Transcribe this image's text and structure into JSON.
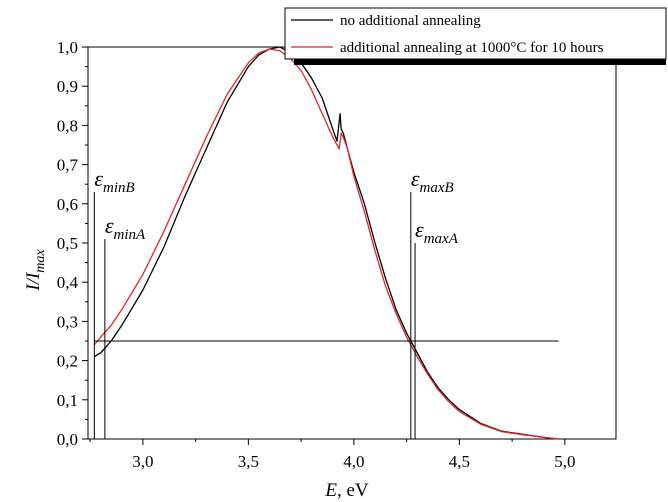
{
  "chart_data": {
    "type": "line",
    "xlabel": {
      "var": "E",
      "unit": ", eV"
    },
    "ylabel": {
      "base": "I/I",
      "sub": "max"
    },
    "xlim": [
      2.74,
      5.25
    ],
    "ylim": [
      0.0,
      1.0
    ],
    "xticks": [
      3.0,
      3.5,
      4.0,
      4.5,
      5.0
    ],
    "xtick_labels": [
      "3,0",
      "3,5",
      "4,0",
      "4,5",
      "5,0"
    ],
    "yticks": [
      0.0,
      0.1,
      0.2,
      0.3,
      0.4,
      0.5,
      0.6,
      0.7,
      0.8,
      0.9,
      1.0
    ],
    "ytick_labels": [
      "0,0",
      "0,1",
      "0,2",
      "0,3",
      "0,4",
      "0,5",
      "0,6",
      "0,7",
      "0,8",
      "0,9",
      "1,0"
    ],
    "legend_position": "top-right",
    "series": [
      {
        "name": "no additional annealing",
        "color": "#000000",
        "x": [
          2.77,
          2.8,
          2.85,
          2.9,
          3.0,
          3.1,
          3.2,
          3.3,
          3.4,
          3.5,
          3.55,
          3.6,
          3.65,
          3.7,
          3.75,
          3.8,
          3.85,
          3.9,
          3.92,
          3.935,
          3.94,
          3.95,
          3.97,
          4.0,
          4.05,
          4.1,
          4.15,
          4.2,
          4.25,
          4.3,
          4.35,
          4.4,
          4.45,
          4.5,
          4.6,
          4.7,
          4.8,
          4.9,
          4.97
        ],
        "y": [
          0.21,
          0.22,
          0.25,
          0.29,
          0.38,
          0.49,
          0.62,
          0.74,
          0.86,
          0.95,
          0.98,
          0.995,
          1.0,
          0.985,
          0.96,
          0.92,
          0.87,
          0.79,
          0.76,
          0.83,
          0.79,
          0.78,
          0.74,
          0.68,
          0.6,
          0.5,
          0.41,
          0.33,
          0.27,
          0.22,
          0.17,
          0.13,
          0.1,
          0.075,
          0.04,
          0.02,
          0.012,
          0.004,
          0.0
        ]
      },
      {
        "name": "additional annealing at 1000°C for 10 hours",
        "color": "#e32626",
        "x": [
          2.77,
          2.8,
          2.85,
          2.9,
          3.0,
          3.1,
          3.2,
          3.3,
          3.4,
          3.5,
          3.55,
          3.6,
          3.65,
          3.7,
          3.75,
          3.8,
          3.85,
          3.9,
          3.93,
          3.94,
          3.95,
          3.97,
          4.0,
          4.05,
          4.1,
          4.15,
          4.2,
          4.25,
          4.3,
          4.35,
          4.4,
          4.45,
          4.5,
          4.6,
          4.7,
          4.8,
          4.9,
          4.97
        ],
        "y": [
          0.24,
          0.26,
          0.29,
          0.33,
          0.42,
          0.53,
          0.65,
          0.77,
          0.88,
          0.96,
          0.985,
          0.995,
          0.99,
          0.97,
          0.94,
          0.89,
          0.83,
          0.77,
          0.74,
          0.78,
          0.77,
          0.74,
          0.67,
          0.58,
          0.48,
          0.39,
          0.32,
          0.26,
          0.21,
          0.165,
          0.125,
          0.095,
          0.07,
          0.038,
          0.019,
          0.011,
          0.004,
          0.0
        ]
      }
    ],
    "hline": {
      "y": 0.25,
      "x": [
        2.77,
        4.97
      ]
    },
    "markers": [
      {
        "label_main": "ε",
        "label_sub": "minB",
        "x": 2.77,
        "ytop": 0.63
      },
      {
        "label_main": "ε",
        "label_sub": "minA",
        "x": 2.82,
        "ytop": 0.51
      },
      {
        "label_main": "ε",
        "label_sub": "maxB",
        "x": 4.27,
        "ytop": 0.63
      },
      {
        "label_main": "ε",
        "label_sub": "maxA",
        "x": 4.29,
        "ytop": 0.5
      }
    ]
  }
}
